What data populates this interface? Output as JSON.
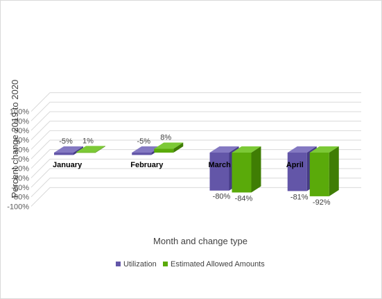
{
  "chart_data": {
    "type": "bar",
    "categories": [
      "January",
      "February",
      "March",
      "April"
    ],
    "series": [
      {
        "name": "Utilization",
        "values": [
          -5,
          -5,
          -80,
          -81
        ]
      },
      {
        "name": "Estimated Allowed Amounts",
        "values": [
          1,
          8,
          -84,
          -92
        ]
      }
    ],
    "data_labels": [
      [
        "-5%",
        "-5%",
        "-80%",
        "-81%"
      ],
      [
        "1%",
        "8%",
        "-84%",
        "-92%"
      ]
    ],
    "yticks": [
      "-100%",
      "-80%",
      "-60%",
      "-40%",
      "-20%",
      "0%",
      "20%",
      "40%",
      "60%",
      "80%",
      "100%"
    ],
    "ylim": [
      -100,
      100
    ],
    "ylabel": "Percent change 2019 to 2020",
    "xlabel": "Month and change type",
    "title": "",
    "grid": true,
    "legend_position": "bottom",
    "colors": {
      "utilization_front": "#6356a8",
      "utilization_top": "#8479c2",
      "utilization_side": "#463b86",
      "allowed_front": "#5aaa0a",
      "allowed_top": "#7cc936",
      "allowed_side": "#3f7d04",
      "gridline": "#d9d9d9"
    }
  }
}
